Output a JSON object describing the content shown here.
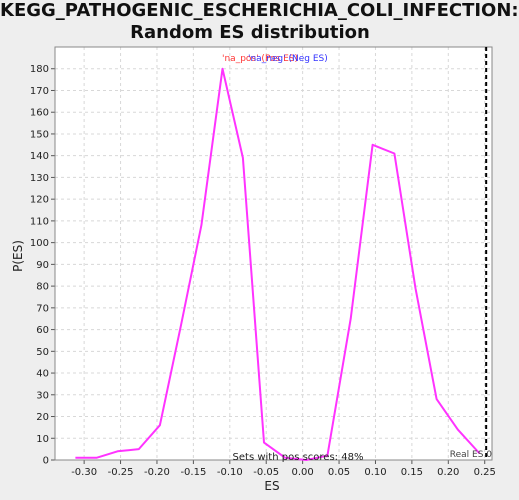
{
  "title_lines": [
    "KEGG_PATHOGENIC_ESCHERICHIA_COLI_INFECTION:",
    "Random ES distribution"
  ],
  "chart_data": {
    "type": "line",
    "xlabel": "ES",
    "ylabel": "P(ES)",
    "xlim": [
      -0.34,
      0.26
    ],
    "ylim": [
      0,
      190
    ],
    "x_ticks": [
      -0.3,
      -0.25,
      -0.2,
      -0.15,
      -0.1,
      -0.05,
      0.0,
      0.05,
      0.1,
      0.15,
      0.2,
      0.25
    ],
    "x_tick_labels": [
      "-0.30",
      "-0.25",
      "-0.20",
      "-0.15",
      "-0.10",
      "-0.05",
      "0.00",
      "0.05",
      "0.10",
      "0.15",
      "0.20",
      "0.25"
    ],
    "y_ticks": [
      0,
      10,
      20,
      30,
      40,
      50,
      60,
      70,
      80,
      90,
      100,
      110,
      120,
      130,
      140,
      150,
      160,
      170,
      180
    ],
    "grid": true,
    "series": [
      {
        "color": "#ff33ff",
        "x": [
          -0.312,
          -0.283,
          -0.254,
          -0.225,
          -0.196,
          -0.167,
          -0.139,
          -0.11,
          -0.082,
          -0.053,
          -0.024,
          0.005,
          0.034,
          0.066,
          0.096,
          0.126,
          0.155,
          0.184,
          0.213,
          0.243
        ],
        "y": [
          1,
          1,
          4,
          5,
          16,
          62,
          108,
          180,
          139,
          8,
          1,
          0,
          2,
          65,
          145,
          141,
          79,
          28,
          14,
          3
        ]
      }
    ],
    "real_es_line": {
      "x": 0.252,
      "label": "Real ES 0",
      "color": "#000000"
    },
    "legend": [
      {
        "label": "'na_pos' (Pos ES)",
        "color": "#ff3333"
      },
      {
        "label": "'na_neg' (Neg ES)",
        "color": "#3333ff"
      }
    ],
    "annotation": "Sets with pos scores: 48%"
  }
}
